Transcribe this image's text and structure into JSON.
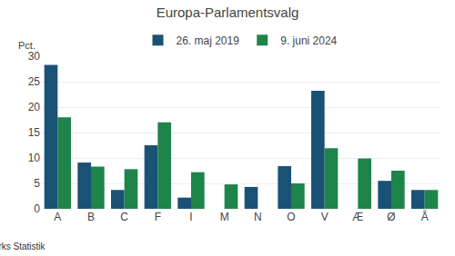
{
  "chart_data": {
    "type": "bar",
    "title": "Europa-Parlamentsvalg",
    "categories": [
      "A",
      "B",
      "C",
      "F",
      "I",
      "M",
      "N",
      "O",
      "V",
      "Æ",
      "Ø",
      "Å"
    ],
    "series": [
      {
        "name": "26. maj 2019",
        "color": "#1a5276",
        "values": [
          28.3,
          9.1,
          3.7,
          12.5,
          2.2,
          0,
          4.3,
          8.4,
          23.2,
          0,
          5.5,
          3.7
        ]
      },
      {
        "name": "9. juni 2024",
        "color": "#1e8449",
        "values": [
          18.0,
          8.3,
          7.8,
          17.0,
          7.2,
          4.8,
          0,
          5.0,
          11.9,
          9.9,
          7.5,
          3.7
        ]
      }
    ],
    "ylabel": "Pct.",
    "ylim": [
      0,
      30
    ],
    "yticks": [
      0,
      5,
      10,
      15,
      20,
      25,
      30
    ],
    "grid": true,
    "legend": "top",
    "annotations": [
      "© Danmarks Statistik"
    ]
  }
}
